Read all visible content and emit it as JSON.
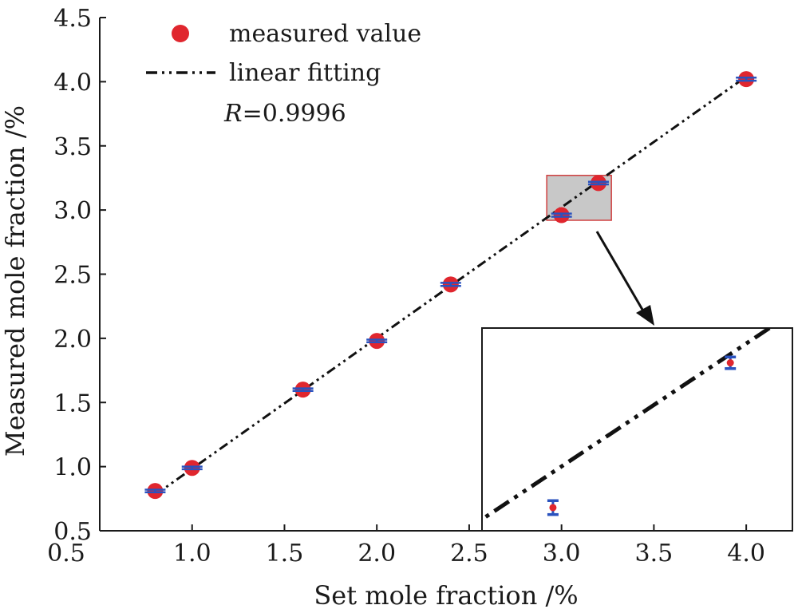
{
  "chart_data": {
    "type": "scatter",
    "title": "",
    "xlabel": "Set mole fraction /%",
    "ylabel": "Measured mole fraction /%",
    "xlim": [
      0.5,
      4.25
    ],
    "ylim": [
      0.5,
      4.5
    ],
    "xticks": [
      "0.5",
      "1.0",
      "1.5",
      "2.0",
      "2.5",
      "3.0",
      "3.5",
      "4.0"
    ],
    "yticks": [
      "0.5",
      "1.0",
      "1.5",
      "2.0",
      "2.5",
      "3.0",
      "3.5",
      "4.0",
      "4.5"
    ],
    "legend": {
      "position": "top-left",
      "entries": [
        "measured value",
        "linear fitting"
      ],
      "r_label": "R",
      "r_value": "=0.9996"
    },
    "series": [
      {
        "name": "measured value",
        "kind": "points",
        "color": "#e0262e",
        "errorbar_color": "#2a52be",
        "x": [
          0.8,
          1.0,
          1.6,
          2.0,
          2.4,
          3.0,
          3.2,
          4.0
        ],
        "y": [
          0.81,
          0.99,
          1.6,
          1.98,
          2.42,
          2.96,
          3.21,
          4.02
        ],
        "yerr": [
          0.01,
          0.01,
          0.01,
          0.01,
          0.012,
          0.012,
          0.01,
          0.012
        ]
      },
      {
        "name": "linear fitting",
        "kind": "line",
        "style": "dash-dot-dot",
        "color": "#111111",
        "x": [
          0.8,
          4.0
        ],
        "y": [
          0.78,
          4.04
        ]
      }
    ],
    "highlight_region": {
      "x": [
        2.92,
        3.27
      ],
      "y": [
        2.92,
        3.27
      ],
      "color": "#c8c8c8",
      "border": "#d04040"
    },
    "inset": {
      "xlim": [
        2.92,
        3.27
      ],
      "ylim": [
        2.92,
        3.27
      ],
      "position": "bottom-right",
      "points_x": [
        3.0,
        3.2
      ],
      "points_y": [
        2.96,
        3.21
      ],
      "yerr": [
        0.012,
        0.01
      ]
    }
  }
}
